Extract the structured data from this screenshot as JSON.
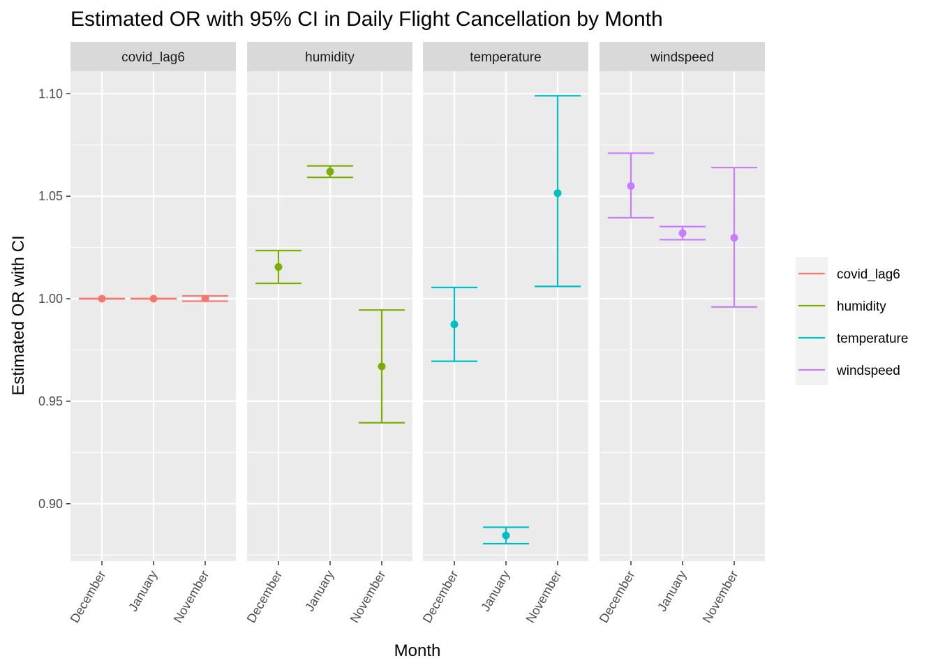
{
  "chart_data": {
    "type": "errorbar",
    "title": "Estimated OR with 95% CI in Daily Flight Cancellation by Month",
    "xlabel": "Month",
    "ylabel": "Estimated OR with CI",
    "categories": [
      "December",
      "January",
      "November"
    ],
    "ylim": [
      0.872,
      1.111
    ],
    "yticks": [
      "0.90",
      "0.95",
      "1.00",
      "1.05",
      "1.10"
    ],
    "grid": true,
    "legend_position": "right",
    "facets": [
      {
        "name": "covid_lag6",
        "color": "#F8766D",
        "points": [
          {
            "month": "December",
            "estimate": 1.0,
            "lower": 0.9999,
            "upper": 1.0001
          },
          {
            "month": "January",
            "estimate": 1.0,
            "lower": 0.9999,
            "upper": 1.0001
          },
          {
            "month": "November",
            "estimate": 1.0001,
            "lower": 0.9988,
            "upper": 1.0014
          }
        ]
      },
      {
        "name": "humidity",
        "color": "#7CAE00",
        "points": [
          {
            "month": "December",
            "estimate": 1.0155,
            "lower": 1.0075,
            "upper": 1.0235
          },
          {
            "month": "January",
            "estimate": 1.062,
            "lower": 1.0592,
            "upper": 1.0648
          },
          {
            "month": "November",
            "estimate": 0.967,
            "lower": 0.9395,
            "upper": 0.9945
          }
        ]
      },
      {
        "name": "temperature",
        "color": "#00BFC4",
        "points": [
          {
            "month": "December",
            "estimate": 0.9875,
            "lower": 0.9695,
            "upper": 1.0055
          },
          {
            "month": "January",
            "estimate": 0.8845,
            "lower": 0.8805,
            "upper": 0.8885
          },
          {
            "month": "November",
            "estimate": 1.0515,
            "lower": 1.006,
            "upper": 1.099
          }
        ]
      },
      {
        "name": "windspeed",
        "color": "#C77CFF",
        "points": [
          {
            "month": "December",
            "estimate": 1.055,
            "lower": 1.0395,
            "upper": 1.071
          },
          {
            "month": "January",
            "estimate": 1.032,
            "lower": 1.0288,
            "upper": 1.0352
          },
          {
            "month": "November",
            "estimate": 1.0297,
            "lower": 0.996,
            "upper": 1.064
          }
        ]
      }
    ]
  }
}
